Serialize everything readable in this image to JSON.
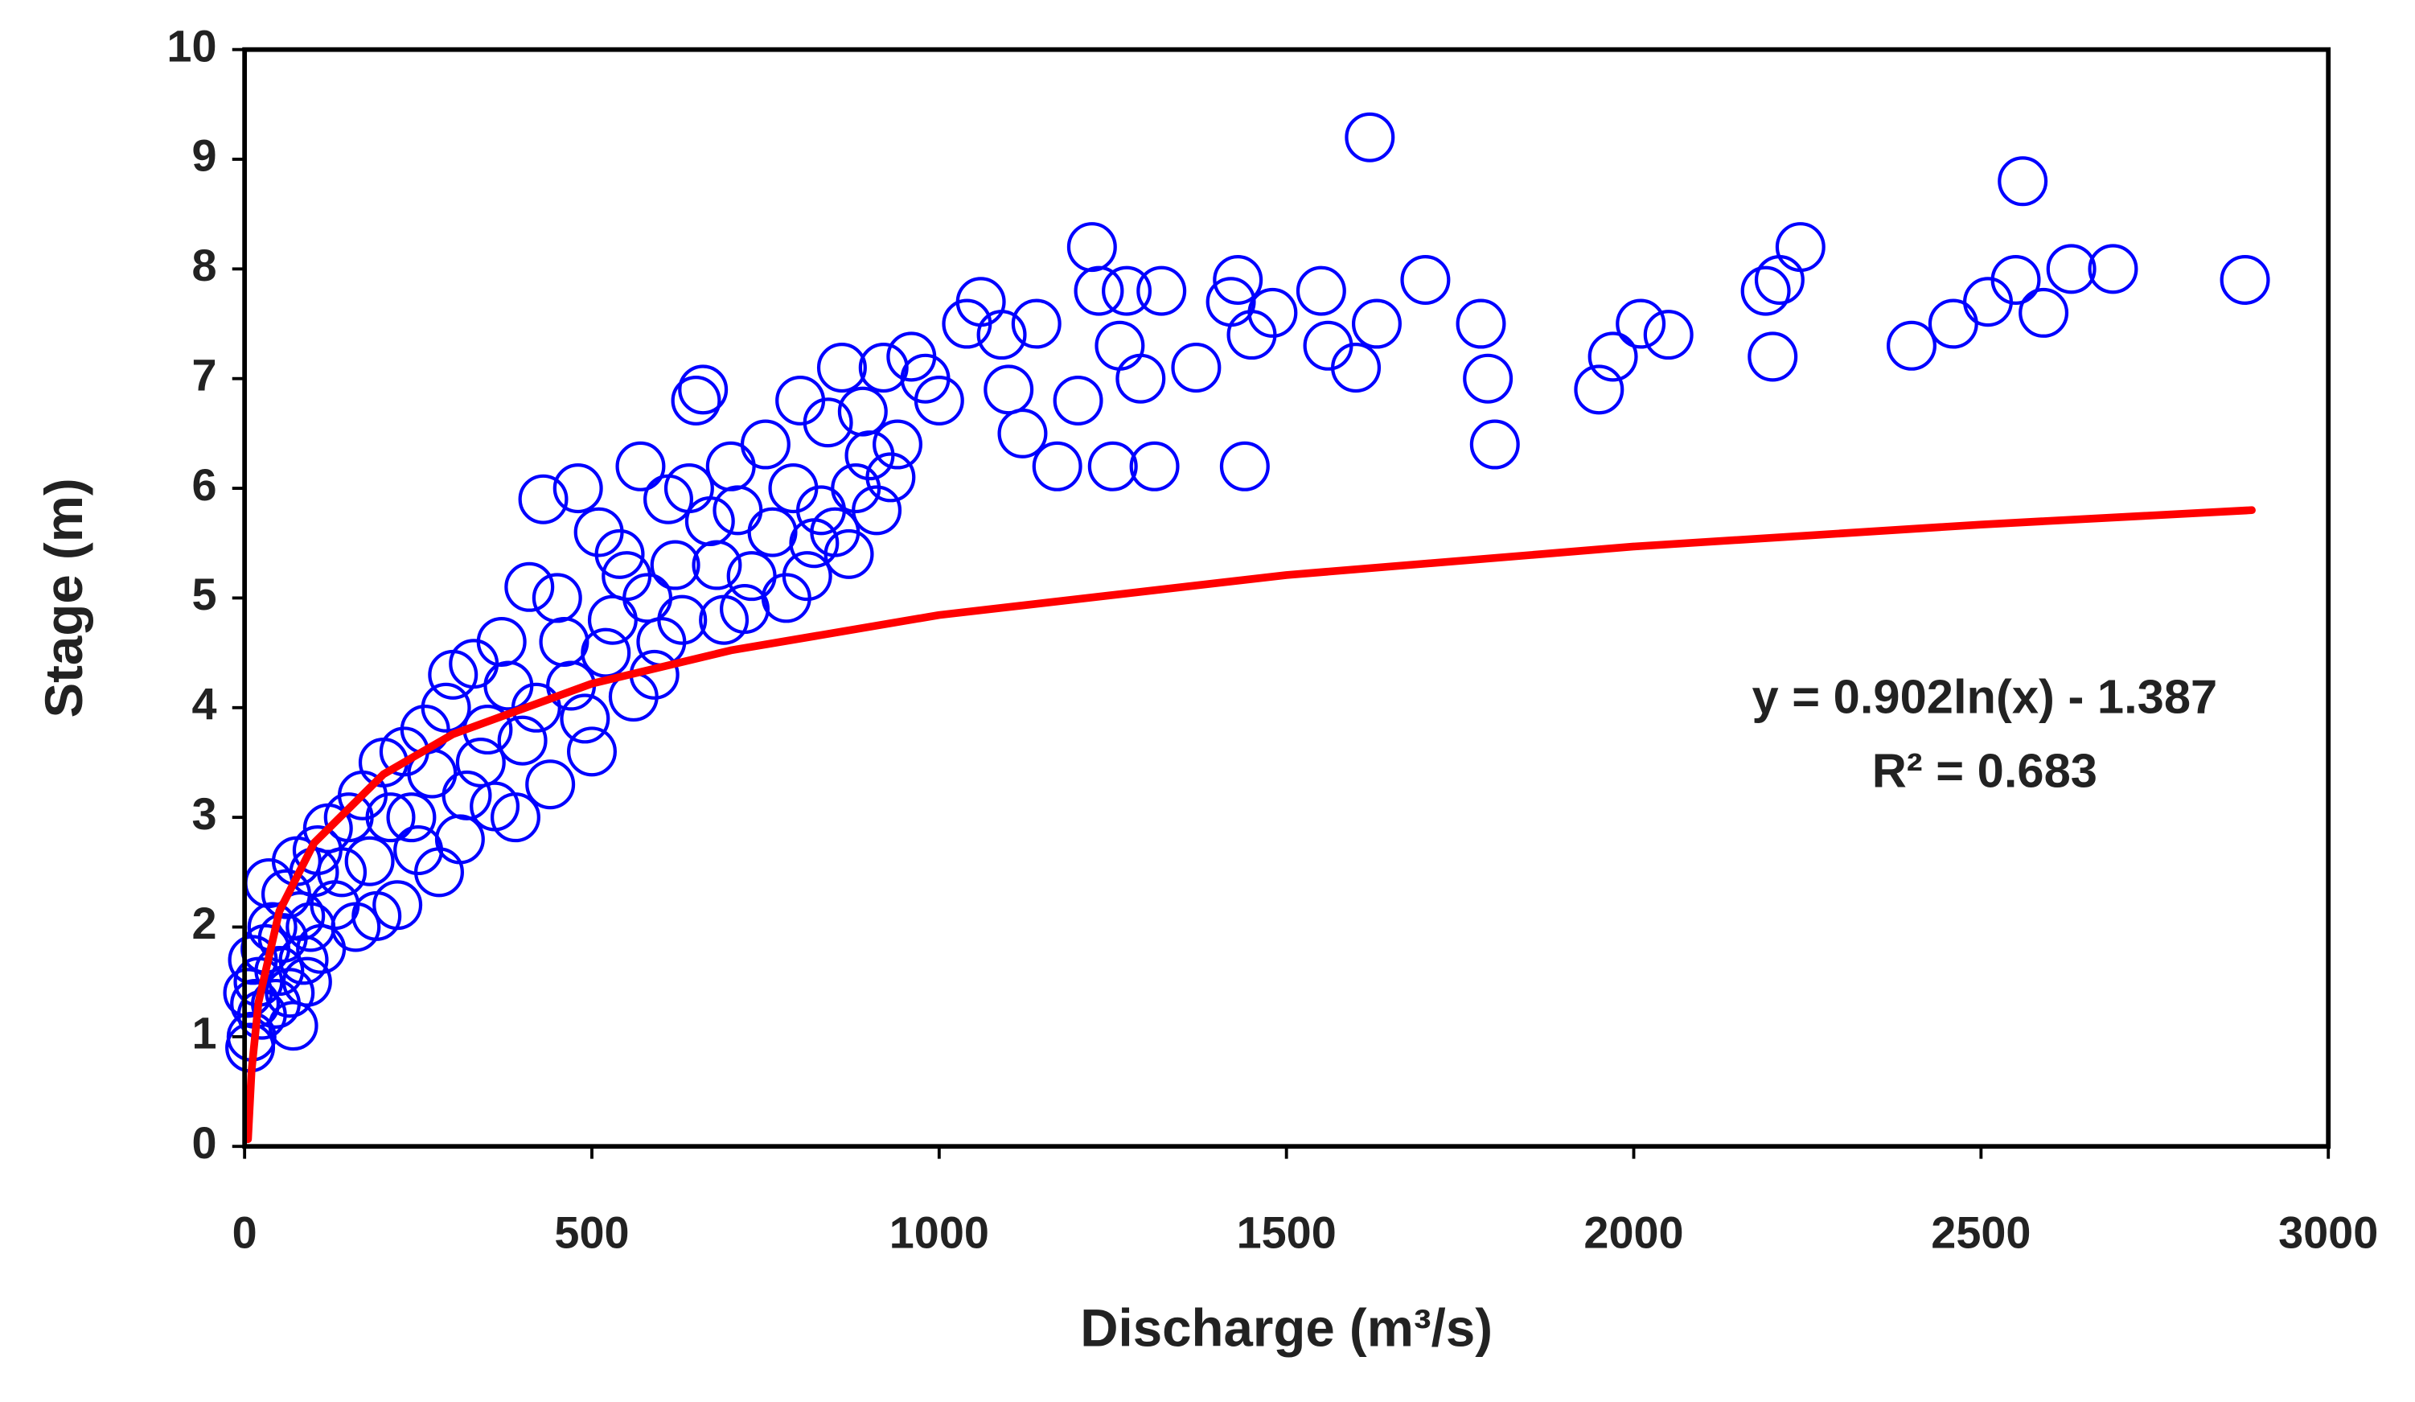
{
  "chart_data": {
    "type": "scatter",
    "xlabel": "Discharge (m³/s)",
    "ylabel": "Stage (m)",
    "annotations": [
      "y = 0.902ln(x) - 1.387",
      "R² = 0.683"
    ],
    "xlim": [
      0,
      3000
    ],
    "xticks": [
      0,
      500,
      1000,
      1500,
      2000,
      2500,
      3000
    ],
    "ylim": [
      0,
      10
    ],
    "yticks": [
      0,
      1,
      2,
      3,
      4,
      5,
      6,
      7,
      8,
      9,
      10
    ],
    "grid": false,
    "series": [
      {
        "type": "scatter",
        "color": "#0000ff",
        "x": [
          10,
          15,
          20,
          25,
          30,
          40,
          50,
          60,
          70,
          80,
          90,
          100,
          110,
          120,
          130,
          150,
          160,
          180,
          200,
          220,
          240,
          260,
          280,
          300,
          320,
          350,
          370,
          390,
          410,
          420,
          430,
          440,
          460,
          480,
          500,
          510,
          530,
          550,
          570,
          590,
          610,
          630,
          650,
          660,
          680,
          700,
          720,
          750,
          780,
          800,
          820,
          840,
          860,
          870,
          900,
          920,
          930,
          960,
          1000,
          1040,
          1060,
          1090,
          1100,
          1120,
          1140,
          1170,
          1200,
          1220,
          1230,
          1250,
          1260,
          1270,
          1290,
          1310,
          1320,
          1370,
          1420,
          1430,
          1440,
          1450,
          1480,
          1550,
          1560,
          1600,
          1620,
          1630,
          1700,
          1780,
          1790,
          1800,
          1950,
          1970,
          2010,
          2050,
          2190,
          2200,
          2210,
          2240,
          2400,
          2460,
          2510,
          2550,
          2560,
          2590,
          2630,
          2690,
          2880,
          5,
          8,
          12,
          35,
          45,
          55,
          65,
          75,
          85,
          95,
          105,
          140,
          170,
          190,
          210,
          230,
          250,
          270,
          290,
          310,
          330,
          340,
          360,
          380,
          400,
          450,
          470,
          490,
          520,
          540,
          560,
          580,
          600,
          620,
          640,
          670,
          690,
          710,
          730,
          760,
          790,
          810,
          830,
          850,
          880,
          890,
          910,
          940,
          980
        ],
        "values": [
          1.0,
          1.3,
          1.5,
          1.2,
          1.8,
          2.0,
          1.6,
          2.3,
          1.1,
          2.1,
          1.5,
          2.5,
          1.8,
          2.9,
          2.2,
          3.0,
          2.0,
          2.6,
          3.5,
          2.2,
          3.0,
          3.8,
          2.5,
          4.3,
          3.2,
          3.8,
          4.6,
          3.0,
          5.1,
          4.0,
          5.9,
          3.3,
          4.6,
          6.0,
          3.6,
          5.6,
          4.8,
          5.2,
          6.2,
          4.3,
          5.9,
          4.8,
          6.8,
          6.9,
          5.3,
          6.2,
          4.9,
          6.4,
          5.0,
          6.8,
          5.5,
          6.6,
          7.1,
          5.4,
          6.3,
          7.1,
          6.1,
          7.2,
          6.8,
          7.5,
          7.7,
          7.4,
          6.9,
          6.5,
          7.5,
          6.2,
          6.8,
          8.2,
          7.8,
          6.2,
          7.3,
          7.8,
          7.0,
          6.2,
          7.8,
          7.1,
          7.7,
          7.9,
          6.2,
          7.4,
          7.6,
          7.8,
          7.3,
          7.1,
          9.2,
          7.5,
          7.9,
          7.5,
          7.0,
          6.4,
          6.9,
          7.2,
          7.5,
          7.4,
          7.8,
          7.2,
          7.9,
          8.2,
          7.3,
          7.5,
          7.7,
          7.9,
          8.8,
          7.6,
          8.0,
          8.0,
          7.9,
          1.4,
          0.9,
          1.7,
          2.4,
          1.3,
          1.9,
          1.4,
          2.6,
          1.7,
          2.0,
          2.7,
          2.5,
          3.2,
          2.1,
          3.0,
          3.6,
          2.7,
          3.4,
          4.0,
          2.8,
          4.4,
          3.5,
          3.1,
          4.2,
          3.7,
          5.0,
          4.2,
          3.9,
          4.5,
          5.4,
          4.1,
          5.0,
          4.6,
          5.3,
          6.0,
          5.7,
          4.8,
          5.8,
          5.2,
          5.6,
          6.0,
          5.2,
          5.8,
          5.6,
          6.0,
          6.7,
          5.8,
          6.4,
          7.0
        ]
      },
      {
        "type": "line",
        "color": "#ff0000",
        "x": [
          5,
          10,
          20,
          50,
          100,
          200,
          300,
          500,
          700,
          1000,
          1500,
          2000,
          2500,
          2890
        ],
        "values": [
          0.065,
          0.69,
          1.315,
          2.142,
          2.767,
          3.392,
          3.758,
          4.219,
          4.522,
          4.844,
          5.209,
          5.469,
          5.67,
          5.801
        ]
      }
    ]
  }
}
